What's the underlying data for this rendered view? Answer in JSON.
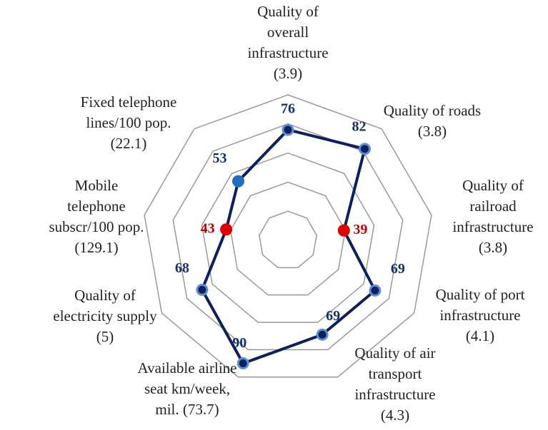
{
  "chart_data": {
    "type": "radar",
    "categories": [
      [
        "Quality of",
        "overall",
        "infrastructure",
        "(3.9)"
      ],
      [
        "Quality of roads",
        "(3.8)"
      ],
      [
        "Quality of",
        "railroad",
        "infrastructure",
        "(3.8)"
      ],
      [
        "Quality of port",
        "infrastructure",
        "(4.1)"
      ],
      [
        "Quality of air",
        "transport",
        "infrastructure",
        "(4.3)"
      ],
      [
        "Available airline",
        "seat km/week,",
        "mil. (73.7)"
      ],
      [
        "Quality of",
        "electricity supply",
        "(5)"
      ],
      [
        "Mobile",
        "telephone",
        "subscr/100 pop.",
        "(129.1)"
      ],
      [
        "Fixed telephone",
        "lines/100 pop.",
        "(22.1)"
      ]
    ],
    "values": [
      76,
      82,
      39,
      69,
      69,
      90,
      68,
      43,
      53
    ],
    "color": "#0d1f5c",
    "point_colors": [
      "#5b8fd6",
      "#5b8fd6",
      "#e00000",
      "#5b8fd6",
      "#5b8fd6",
      "#5b8fd6",
      "#5b8fd6",
      "#e00000",
      "#1f6fc0"
    ],
    "value_label_colors": [
      "#14306b",
      "#14306b",
      "#c00000",
      "#14306b",
      "#14306b",
      "#14306b",
      "#14306b",
      "#c00000",
      "#14306b"
    ],
    "ylim": [
      0,
      100
    ],
    "yticks": [
      20,
      40,
      60,
      80,
      100
    ],
    "grid": true
  }
}
